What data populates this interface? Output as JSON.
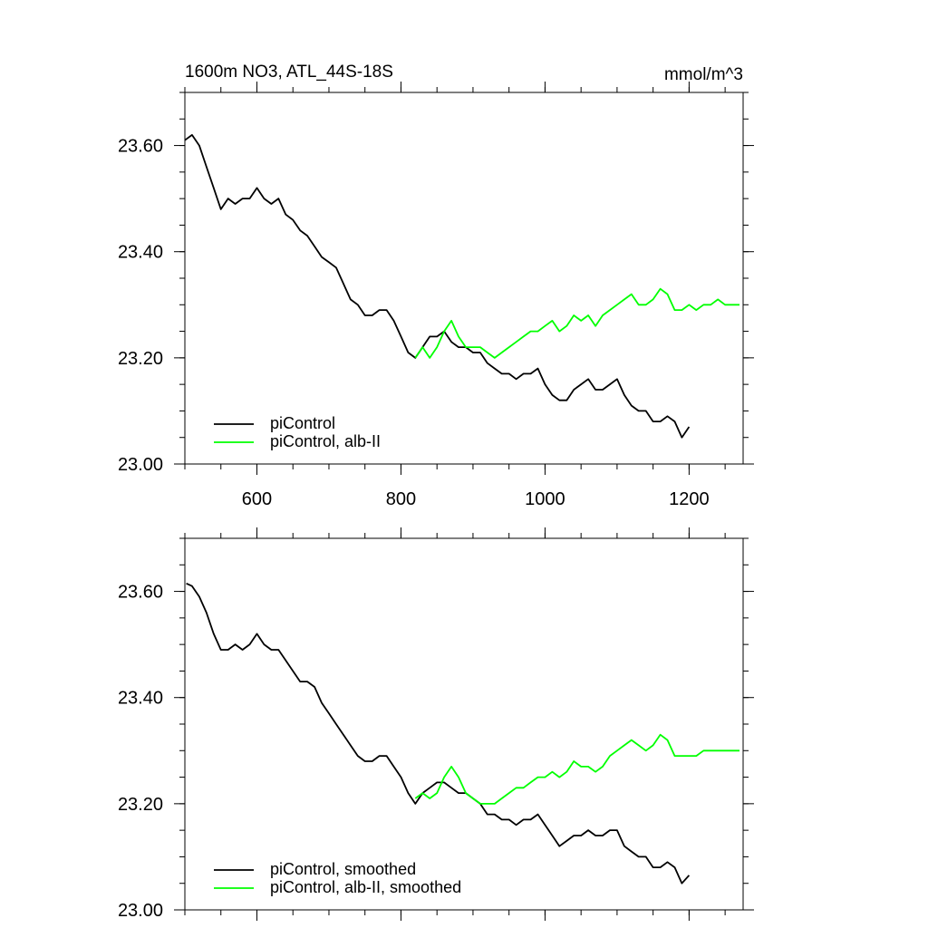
{
  "chart_data": [
    {
      "type": "line",
      "title": "1600m NO3, ATL_44S-18S",
      "units": "mmol/m^3",
      "xlim": [
        500,
        1275
      ],
      "ylim": [
        23.0,
        23.7
      ],
      "x_ticks": [
        600,
        800,
        1000,
        1200
      ],
      "x_tick_labels": [
        "600",
        "800",
        "1000",
        "1200"
      ],
      "y_ticks": [
        23.0,
        23.2,
        23.4,
        23.6
      ],
      "y_tick_labels": [
        "23.00",
        "23.20",
        "23.40",
        "23.60"
      ],
      "legend_position": "bottom-left",
      "series": [
        {
          "name": "piControl",
          "color": "#000000",
          "points": [
            [
              500,
              23.61
            ],
            [
              510,
              23.62
            ],
            [
              520,
              23.6
            ],
            [
              530,
              23.56
            ],
            [
              540,
              23.52
            ],
            [
              550,
              23.48
            ],
            [
              560,
              23.5
            ],
            [
              570,
              23.49
            ],
            [
              580,
              23.5
            ],
            [
              590,
              23.5
            ],
            [
              600,
              23.52
            ],
            [
              610,
              23.5
            ],
            [
              620,
              23.49
            ],
            [
              630,
              23.5
            ],
            [
              640,
              23.47
            ],
            [
              650,
              23.46
            ],
            [
              660,
              23.44
            ],
            [
              670,
              23.43
            ],
            [
              680,
              23.41
            ],
            [
              690,
              23.39
            ],
            [
              700,
              23.38
            ],
            [
              710,
              23.37
            ],
            [
              720,
              23.34
            ],
            [
              730,
              23.31
            ],
            [
              740,
              23.3
            ],
            [
              750,
              23.28
            ],
            [
              760,
              23.28
            ],
            [
              770,
              23.29
            ],
            [
              780,
              23.29
            ],
            [
              790,
              23.27
            ],
            [
              800,
              23.24
            ],
            [
              810,
              23.21
            ],
            [
              820,
              23.2
            ],
            [
              830,
              23.22
            ],
            [
              840,
              23.24
            ],
            [
              850,
              23.24
            ],
            [
              860,
              23.25
            ],
            [
              870,
              23.23
            ],
            [
              880,
              23.22
            ],
            [
              890,
              23.22
            ],
            [
              900,
              23.21
            ],
            [
              910,
              23.21
            ],
            [
              920,
              23.19
            ],
            [
              930,
              23.18
            ],
            [
              940,
              23.17
            ],
            [
              950,
              23.17
            ],
            [
              960,
              23.16
            ],
            [
              970,
              23.17
            ],
            [
              980,
              23.17
            ],
            [
              990,
              23.18
            ],
            [
              1000,
              23.15
            ],
            [
              1010,
              23.13
            ],
            [
              1020,
              23.12
            ],
            [
              1030,
              23.12
            ],
            [
              1040,
              23.14
            ],
            [
              1050,
              23.15
            ],
            [
              1060,
              23.16
            ],
            [
              1070,
              23.14
            ],
            [
              1080,
              23.14
            ],
            [
              1090,
              23.15
            ],
            [
              1100,
              23.16
            ],
            [
              1110,
              23.13
            ],
            [
              1120,
              23.11
            ],
            [
              1130,
              23.1
            ],
            [
              1140,
              23.1
            ],
            [
              1150,
              23.08
            ],
            [
              1160,
              23.08
            ],
            [
              1170,
              23.09
            ],
            [
              1180,
              23.08
            ],
            [
              1190,
              23.05
            ],
            [
              1200,
              23.07
            ]
          ]
        },
        {
          "name": "piControl, alb-II",
          "color": "#00ff00",
          "points": [
            [
              820,
              23.2
            ],
            [
              830,
              23.22
            ],
            [
              840,
              23.2
            ],
            [
              850,
              23.22
            ],
            [
              860,
              23.25
            ],
            [
              870,
              23.27
            ],
            [
              880,
              23.24
            ],
            [
              890,
              23.22
            ],
            [
              900,
              23.22
            ],
            [
              910,
              23.22
            ],
            [
              920,
              23.21
            ],
            [
              930,
              23.2
            ],
            [
              940,
              23.21
            ],
            [
              950,
              23.22
            ],
            [
              960,
              23.23
            ],
            [
              970,
              23.24
            ],
            [
              980,
              23.25
            ],
            [
              990,
              23.25
            ],
            [
              1000,
              23.26
            ],
            [
              1010,
              23.27
            ],
            [
              1020,
              23.25
            ],
            [
              1030,
              23.26
            ],
            [
              1040,
              23.28
            ],
            [
              1050,
              23.27
            ],
            [
              1060,
              23.28
            ],
            [
              1070,
              23.26
            ],
            [
              1080,
              23.28
            ],
            [
              1090,
              23.29
            ],
            [
              1100,
              23.3
            ],
            [
              1110,
              23.31
            ],
            [
              1120,
              23.32
            ],
            [
              1130,
              23.3
            ],
            [
              1140,
              23.3
            ],
            [
              1150,
              23.31
            ],
            [
              1160,
              23.33
            ],
            [
              1170,
              23.32
            ],
            [
              1180,
              23.29
            ],
            [
              1190,
              23.29
            ],
            [
              1200,
              23.3
            ],
            [
              1210,
              23.29
            ],
            [
              1220,
              23.3
            ],
            [
              1230,
              23.3
            ],
            [
              1240,
              23.31
            ],
            [
              1250,
              23.3
            ],
            [
              1260,
              23.3
            ],
            [
              1270,
              23.3
            ]
          ]
        }
      ]
    },
    {
      "type": "line",
      "xlim": [
        500,
        1275
      ],
      "ylim": [
        23.0,
        23.7
      ],
      "x_ticks": [
        600,
        800,
        1000,
        1200
      ],
      "y_ticks": [
        23.0,
        23.2,
        23.4,
        23.6
      ],
      "y_tick_labels": [
        "23.00",
        "23.20",
        "23.40",
        "23.60"
      ],
      "legend_position": "bottom-left",
      "series": [
        {
          "name": "piControl, smoothed",
          "color": "#000000",
          "points": [
            [
              502,
              23.615
            ],
            [
              510,
              23.61
            ],
            [
              520,
              23.59
            ],
            [
              530,
              23.56
            ],
            [
              540,
              23.52
            ],
            [
              550,
              23.49
            ],
            [
              560,
              23.49
            ],
            [
              570,
              23.5
            ],
            [
              580,
              23.49
            ],
            [
              590,
              23.5
            ],
            [
              600,
              23.52
            ],
            [
              610,
              23.5
            ],
            [
              620,
              23.49
            ],
            [
              630,
              23.49
            ],
            [
              640,
              23.47
            ],
            [
              650,
              23.45
            ],
            [
              660,
              23.43
            ],
            [
              670,
              23.43
            ],
            [
              680,
              23.42
            ],
            [
              690,
              23.39
            ],
            [
              700,
              23.37
            ],
            [
              710,
              23.35
            ],
            [
              720,
              23.33
            ],
            [
              730,
              23.31
            ],
            [
              740,
              23.29
            ],
            [
              750,
              23.28
            ],
            [
              760,
              23.28
            ],
            [
              770,
              23.29
            ],
            [
              780,
              23.29
            ],
            [
              790,
              23.27
            ],
            [
              800,
              23.25
            ],
            [
              810,
              23.22
            ],
            [
              820,
              23.2
            ],
            [
              830,
              23.22
            ],
            [
              840,
              23.23
            ],
            [
              850,
              23.24
            ],
            [
              860,
              23.24
            ],
            [
              870,
              23.23
            ],
            [
              880,
              23.22
            ],
            [
              890,
              23.22
            ],
            [
              900,
              23.21
            ],
            [
              910,
              23.2
            ],
            [
              920,
              23.18
            ],
            [
              930,
              23.18
            ],
            [
              940,
              23.17
            ],
            [
              950,
              23.17
            ],
            [
              960,
              23.16
            ],
            [
              970,
              23.17
            ],
            [
              980,
              23.17
            ],
            [
              990,
              23.18
            ],
            [
              1000,
              23.16
            ],
            [
              1010,
              23.14
            ],
            [
              1020,
              23.12
            ],
            [
              1030,
              23.13
            ],
            [
              1040,
              23.14
            ],
            [
              1050,
              23.14
            ],
            [
              1060,
              23.15
            ],
            [
              1070,
              23.14
            ],
            [
              1080,
              23.14
            ],
            [
              1090,
              23.15
            ],
            [
              1100,
              23.15
            ],
            [
              1110,
              23.12
            ],
            [
              1120,
              23.11
            ],
            [
              1130,
              23.1
            ],
            [
              1140,
              23.1
            ],
            [
              1150,
              23.08
            ],
            [
              1160,
              23.08
            ],
            [
              1170,
              23.09
            ],
            [
              1180,
              23.08
            ],
            [
              1190,
              23.05
            ],
            [
              1200,
              23.065
            ]
          ]
        },
        {
          "name": "piControl, alb-II, smoothed",
          "color": "#00ff00",
          "points": [
            [
              820,
              23.21
            ],
            [
              830,
              23.22
            ],
            [
              840,
              23.21
            ],
            [
              850,
              23.22
            ],
            [
              860,
              23.25
            ],
            [
              870,
              23.27
            ],
            [
              880,
              23.25
            ],
            [
              890,
              23.22
            ],
            [
              900,
              23.21
            ],
            [
              910,
              23.2
            ],
            [
              920,
              23.2
            ],
            [
              930,
              23.2
            ],
            [
              940,
              23.21
            ],
            [
              950,
              23.22
            ],
            [
              960,
              23.23
            ],
            [
              970,
              23.23
            ],
            [
              980,
              23.24
            ],
            [
              990,
              23.25
            ],
            [
              1000,
              23.25
            ],
            [
              1010,
              23.26
            ],
            [
              1020,
              23.25
            ],
            [
              1030,
              23.26
            ],
            [
              1040,
              23.28
            ],
            [
              1050,
              23.27
            ],
            [
              1060,
              23.27
            ],
            [
              1070,
              23.26
            ],
            [
              1080,
              23.27
            ],
            [
              1090,
              23.29
            ],
            [
              1100,
              23.3
            ],
            [
              1110,
              23.31
            ],
            [
              1120,
              23.32
            ],
            [
              1130,
              23.31
            ],
            [
              1140,
              23.3
            ],
            [
              1150,
              23.31
            ],
            [
              1160,
              23.33
            ],
            [
              1170,
              23.32
            ],
            [
              1180,
              23.29
            ],
            [
              1190,
              23.29
            ],
            [
              1200,
              23.29
            ],
            [
              1210,
              23.29
            ],
            [
              1220,
              23.3
            ],
            [
              1230,
              23.3
            ],
            [
              1240,
              23.3
            ],
            [
              1250,
              23.3
            ],
            [
              1260,
              23.3
            ],
            [
              1270,
              23.3
            ]
          ]
        }
      ]
    }
  ]
}
